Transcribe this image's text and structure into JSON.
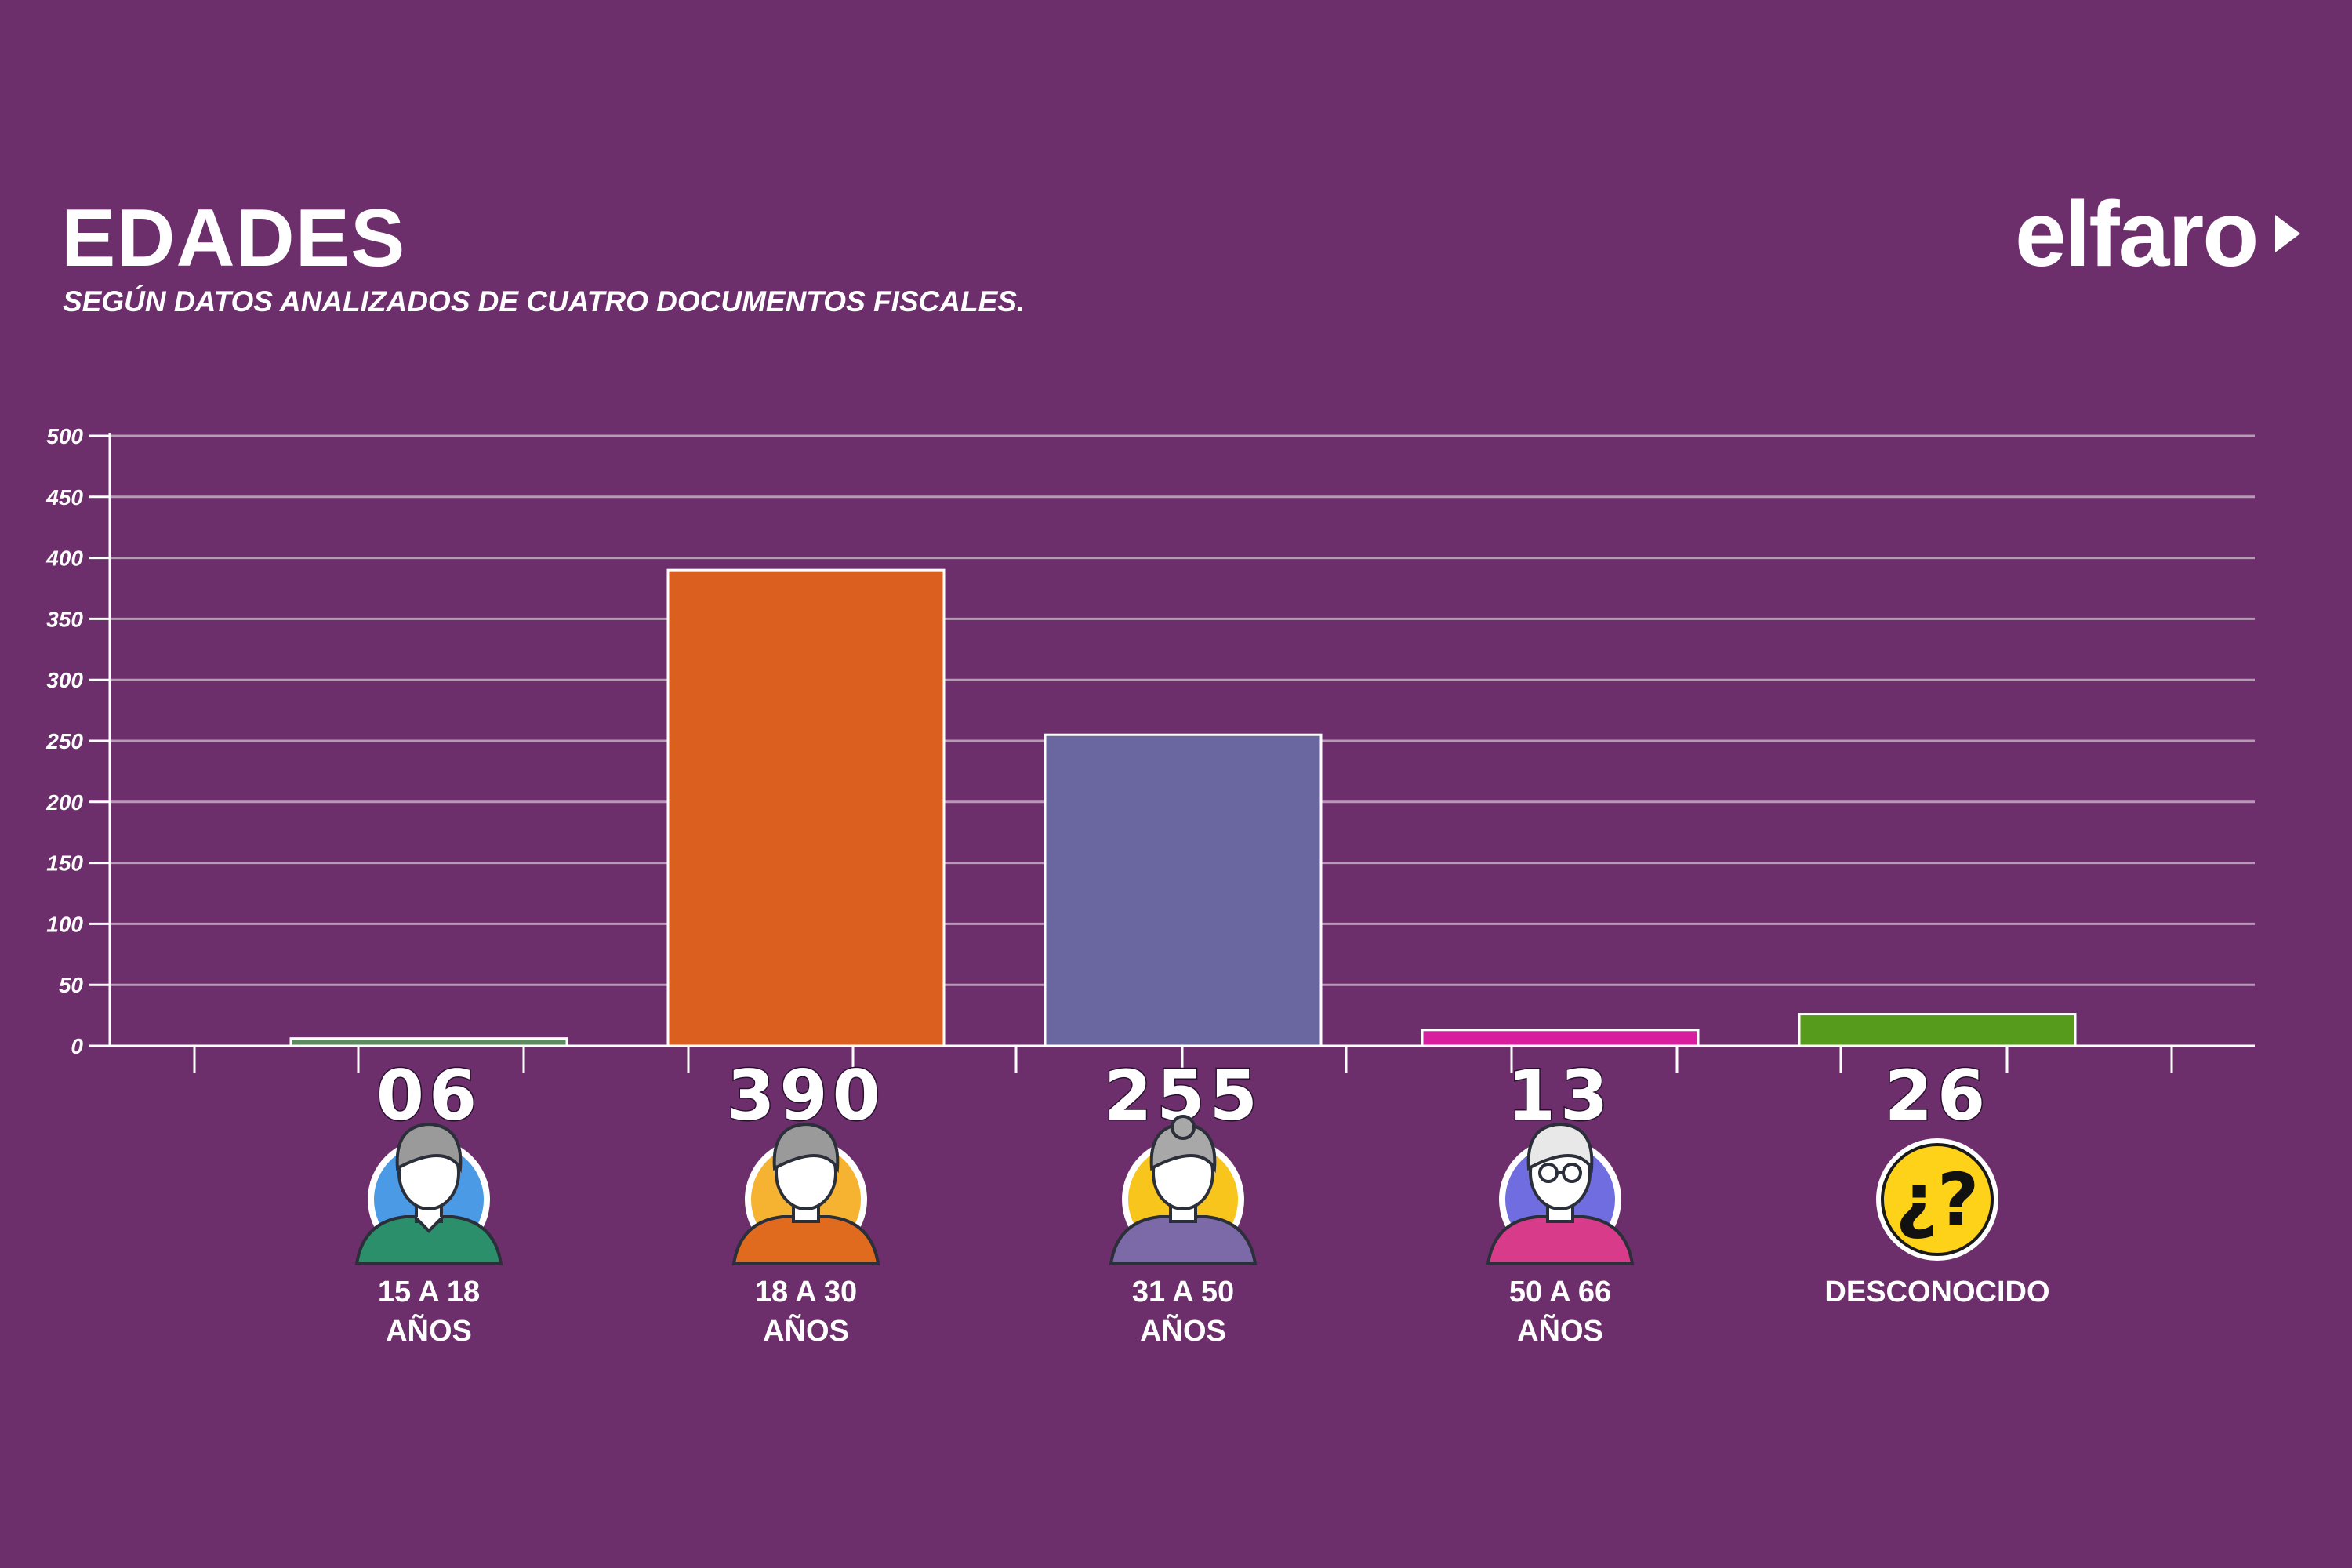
{
  "header": {
    "title": "EDADES",
    "subtitle": "SEGÚN DATOS ANALIZADOS DE CUATRO DOCUMENTOS FISCALES.",
    "logo": "elfaro"
  },
  "colors": {
    "background": "#6c2f6b",
    "grid": "#b79bb6",
    "axis": "#ffffff"
  },
  "chart_data": {
    "type": "bar",
    "title": "EDADES",
    "subtitle": "SEGÚN DATOS ANALIZADOS DE CUATRO DOCUMENTOS FISCALES.",
    "xlabel": "",
    "ylabel": "",
    "ylim": [
      0,
      500
    ],
    "yticks": [
      "0",
      "50",
      "100",
      "150",
      "200",
      "250",
      "300",
      "350",
      "400",
      "450",
      "500"
    ],
    "grid": true,
    "categories": [
      {
        "label_lines": [
          "15 A 18",
          "AÑOS"
        ],
        "value": 6,
        "value_label": "06",
        "color": "#5d8a5e",
        "icon": "teen-boy-icon",
        "icon_bg": "#4a9ae6",
        "shirt": "#2a8f6a",
        "hair": "#9a9a9a"
      },
      {
        "label_lines": [
          "18 A 30",
          "AÑOS"
        ],
        "value": 390,
        "value_label": "390",
        "color": "#db5f1f",
        "icon": "young-man-icon",
        "icon_bg": "#f5b331",
        "shirt": "#e06a1e",
        "hair": "#9a9a9a"
      },
      {
        "label_lines": [
          "31 A 50",
          "AÑOS"
        ],
        "value": 255,
        "value_label": "255",
        "color": "#6a67a0",
        "icon": "middle-aged-woman-icon",
        "icon_bg": "#f7c51b",
        "shirt": "#7c6aa8",
        "hair": "#a8a8a8"
      },
      {
        "label_lines": [
          "50 A 66",
          "AÑOS"
        ],
        "value": 13,
        "value_label": "13",
        "color": "#d61e9e",
        "icon": "older-man-glasses-icon",
        "icon_bg": "#6f6de0",
        "shirt": "#d83b8a",
        "hair": "#e8e8e8"
      },
      {
        "label_lines": [
          "DESCONOCIDO"
        ],
        "value": 26,
        "value_label": "26",
        "color": "#579b1c",
        "icon": "question-mark-icon",
        "icon_bg": "#ffd21a",
        "shirt": "",
        "hair": ""
      }
    ]
  }
}
